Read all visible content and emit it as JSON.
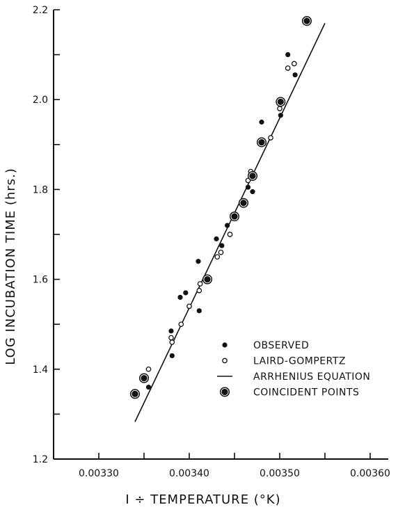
{
  "chart_data": {
    "type": "scatter",
    "xlabel": "I ÷ TEMPERATURE  (°K)",
    "ylabel": "LOG  INCUBATION  TIME  (hrs.)",
    "xlim": [
      0.00325,
      0.00362
    ],
    "ylim": [
      1.2,
      2.2
    ],
    "x_ticks": [
      0.0033,
      0.0034,
      0.0035,
      0.0036
    ],
    "x_tick_labels": [
      "0.00330",
      "0.00340",
      "0.00350",
      "0.00360"
    ],
    "y_ticks": [
      1.2,
      1.3,
      1.4,
      1.5,
      1.6,
      1.7,
      1.8,
      1.9,
      2.0,
      2.1,
      2.2
    ],
    "y_tick_labels": [
      "1.2",
      "",
      "1.4",
      "",
      "1.6",
      "",
      "1.8",
      "",
      "2.0",
      "",
      "2.2"
    ],
    "grid": false,
    "legend_position": "lower-right",
    "series": [
      {
        "name": "OBSERVED",
        "marker": "filled-circle",
        "points": [
          [
            0.003355,
            1.36
          ],
          [
            0.00338,
            1.485
          ],
          [
            0.003381,
            1.43
          ],
          [
            0.00339,
            1.56
          ],
          [
            0.003396,
            1.57
          ],
          [
            0.00341,
            1.64
          ],
          [
            0.003411,
            1.53
          ],
          [
            0.00343,
            1.69
          ],
          [
            0.003436,
            1.675
          ],
          [
            0.003442,
            1.72
          ],
          [
            0.003465,
            1.805
          ],
          [
            0.00347,
            1.795
          ],
          [
            0.00348,
            1.95
          ],
          [
            0.003501,
            1.965
          ],
          [
            0.003509,
            2.1
          ],
          [
            0.003517,
            2.055
          ]
        ]
      },
      {
        "name": "LAIRD-GOMPERTZ",
        "marker": "open-circle",
        "points": [
          [
            0.003355,
            1.4
          ],
          [
            0.00338,
            1.47
          ],
          [
            0.003381,
            1.46
          ],
          [
            0.003391,
            1.5
          ],
          [
            0.0034,
            1.54
          ],
          [
            0.003411,
            1.575
          ],
          [
            0.003412,
            1.59
          ],
          [
            0.003431,
            1.65
          ],
          [
            0.003435,
            1.66
          ],
          [
            0.003445,
            1.7
          ],
          [
            0.003465,
            1.82
          ],
          [
            0.003468,
            1.84
          ],
          [
            0.00349,
            1.915
          ],
          [
            0.0035,
            1.98
          ],
          [
            0.003509,
            2.07
          ],
          [
            0.003516,
            2.08
          ]
        ]
      },
      {
        "name": "ARRHENIUS EQUATION",
        "marker": "line",
        "points": [
          [
            0.00334,
            1.283
          ],
          [
            0.00355,
            2.17
          ]
        ]
      },
      {
        "name": "COINCIDENT POINTS",
        "marker": "ringed-dot",
        "points": [
          [
            0.00334,
            1.345
          ],
          [
            0.00335,
            1.38
          ],
          [
            0.00342,
            1.6
          ],
          [
            0.00345,
            1.74
          ],
          [
            0.00346,
            1.77
          ],
          [
            0.00347,
            1.83
          ],
          [
            0.00348,
            1.905
          ],
          [
            0.003501,
            1.995
          ],
          [
            0.00353,
            2.175
          ]
        ]
      }
    ]
  }
}
